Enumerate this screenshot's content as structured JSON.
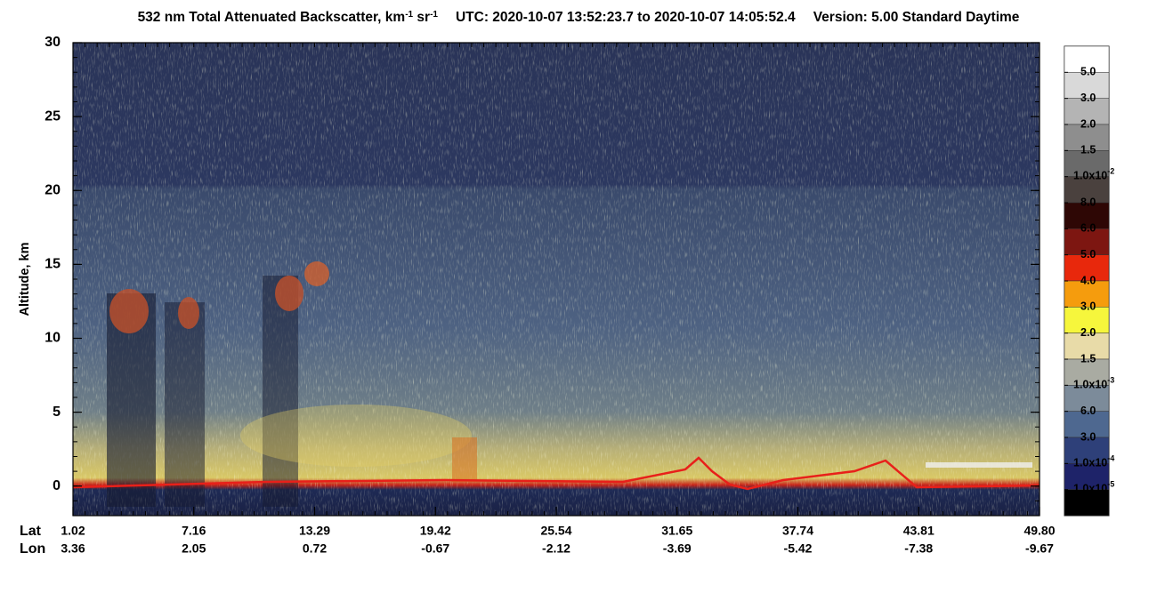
{
  "chart_data": {
    "type": "curtain",
    "title_segments": [
      {
        "text": "532 nm Total Attenuated Backscatter, km"
      },
      {
        "text": "-1",
        "sup": true
      },
      {
        "text": " sr"
      },
      {
        "text": "-1",
        "sup": true
      }
    ],
    "utc": "UTC:  2020-10-07 13:52:23.7  to  2020-10-07 14:05:52.4",
    "version": "Version: 5.00  Standard  Daytime",
    "ylabel": "Altitude, km",
    "ylim": [
      -2,
      30
    ],
    "yticks": [
      0,
      5,
      10,
      15,
      20,
      25,
      30
    ],
    "lat_label": "Lat",
    "lon_label": "Lon",
    "lat_ticks": [
      1.02,
      7.16,
      13.29,
      19.42,
      25.54,
      31.65,
      37.74,
      43.81,
      {
        "value": 49.8,
        "label": "49.80"
      }
    ],
    "lon_ticks": [
      3.36,
      2.05,
      0.72,
      -0.67,
      -2.12,
      -3.69,
      -5.42,
      -7.38,
      -9.67
    ],
    "colorbar": {
      "colors": [
        "#ffffff",
        "#d9d9d9",
        "#b4b4b4",
        "#8e8e8e",
        "#6a6a6a",
        "#4a413e",
        "#2e0705",
        "#7d1611",
        "#e8280c",
        "#f59c0d",
        "#f6f63c",
        "#e8dba8",
        "#a9aba2",
        "#7c8b9a",
        "#4e6890",
        "#2e4079",
        "#1e2369",
        "#000000"
      ],
      "labels": [
        "5.0",
        "3.0",
        "2.0",
        "1.5",
        {
          "text": "1.0x10",
          "sup": "-2"
        },
        "8.0",
        "6.0",
        "5.0",
        "4.0",
        "3.0",
        "2.0",
        "1.5",
        {
          "text": "1.0x10",
          "sup": "-3"
        },
        "6.0",
        "3.0",
        {
          "text": "1.0x10",
          "sup": "-4"
        },
        {
          "text": "1.0x10",
          "sup": "-5"
        }
      ]
    }
  }
}
